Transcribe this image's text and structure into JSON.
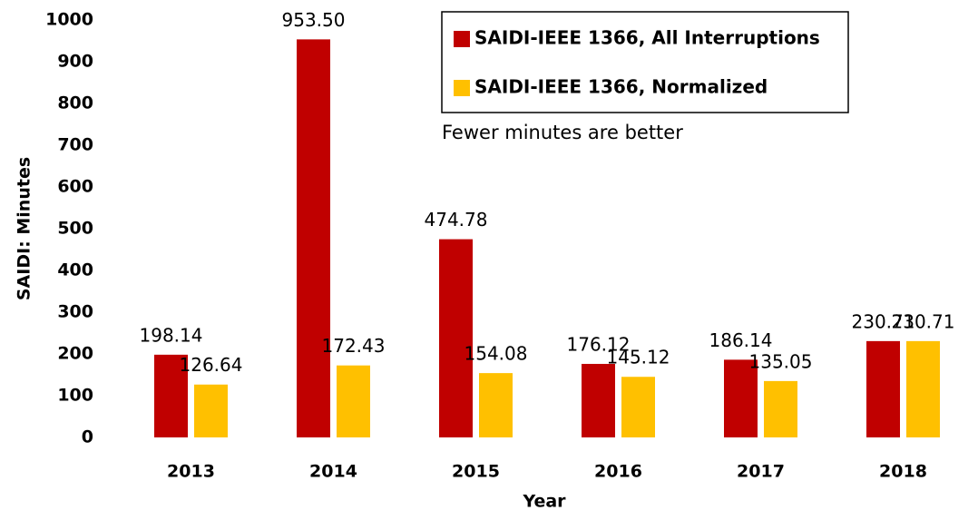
{
  "chart_data": {
    "type": "bar",
    "categories": [
      "2013",
      "2014",
      "2015",
      "2016",
      "2017",
      "2018"
    ],
    "series": [
      {
        "name": "SAIDI-IEEE 1366, All Interruptions",
        "color": "#c00000",
        "values": [
          198.14,
          953.5,
          474.78,
          176.12,
          186.14,
          230.71
        ],
        "value_labels": [
          "198.14",
          "953.50",
          "474.78",
          "176.12",
          "186.14",
          "230.71"
        ]
      },
      {
        "name": "SAIDI-IEEE 1366, Normalized",
        "color": "#ffc000",
        "values": [
          126.64,
          172.43,
          154.08,
          145.12,
          135.05,
          230.71
        ],
        "value_labels": [
          "126.64",
          "172.43",
          "154.08",
          "145.12",
          "135.05",
          "230.71"
        ]
      }
    ],
    "ylim": [
      0,
      1000
    ],
    "yticks": [
      0,
      100,
      200,
      300,
      400,
      500,
      600,
      700,
      800,
      900,
      1000
    ],
    "ylabel": "SAIDI:  Minutes",
    "xlabel": "Year",
    "annotation": "Fewer minutes are better",
    "legend": "top-right"
  }
}
